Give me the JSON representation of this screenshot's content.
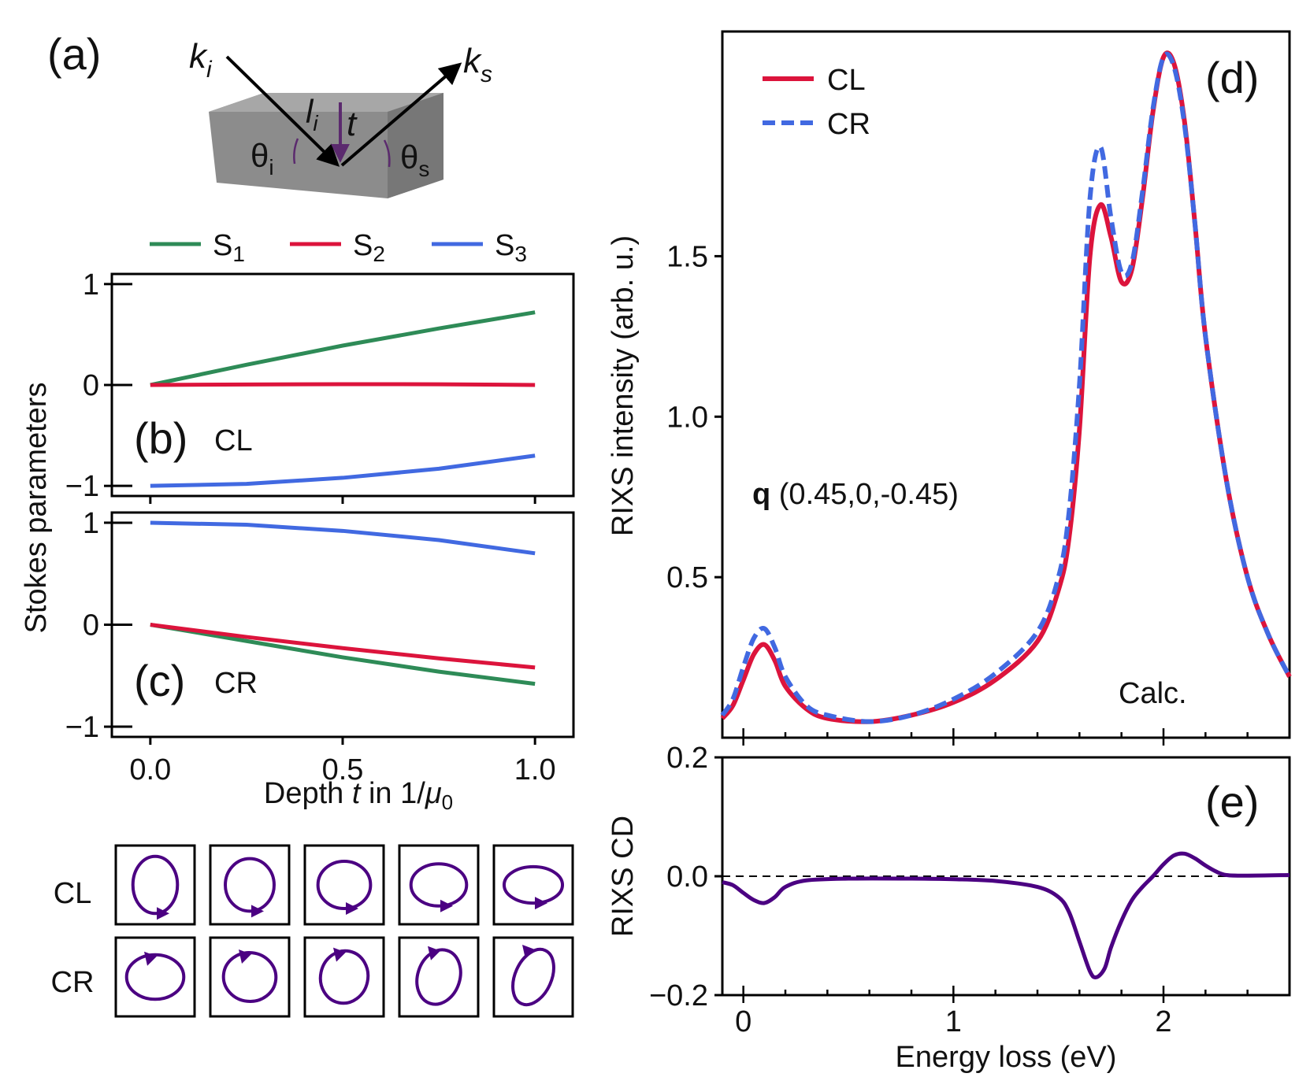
{
  "panel_labels": {
    "a": "(a)",
    "b": "(b)",
    "c": "(c)",
    "d": "(d)",
    "e": "(e)"
  },
  "schematic": {
    "k_in": "k",
    "k_in_sub": "i",
    "k_out": "k",
    "k_out_sub": "s",
    "theta_i": "θ",
    "theta_i_sub": "i",
    "theta_s": "θ",
    "theta_s_sub": "s",
    "path_len": "l",
    "path_len_sub": "i",
    "depth": "t"
  },
  "ellipses": {
    "row_labels": [
      "CL",
      "CR"
    ]
  },
  "colors": {
    "S1": "#2e8b57",
    "S2": "#dc143c",
    "S3": "#4169e1",
    "CL": "#dc143c",
    "CR": "#4169e1",
    "CD": "#4b0082"
  },
  "chart_data": [
    {
      "id": "b",
      "type": "line",
      "legend": [
        "S",
        "S",
        "S"
      ],
      "legend_subs": [
        "1",
        "2",
        "3"
      ],
      "label": "CL",
      "x": [
        0,
        0.25,
        0.5,
        0.75,
        1.0
      ],
      "series": [
        {
          "name": "S1",
          "values": [
            0,
            0.2,
            0.39,
            0.56,
            0.72
          ]
        },
        {
          "name": "S2",
          "values": [
            0,
            0.005,
            0.008,
            0.007,
            0
          ]
        },
        {
          "name": "S3",
          "values": [
            -1.0,
            -0.98,
            -0.92,
            -0.83,
            -0.7
          ]
        }
      ],
      "ylim": [
        -1.1,
        1.1
      ],
      "xlim": [
        -0.1,
        1.1
      ],
      "yticks": [
        -1,
        0,
        1
      ],
      "yticklabels": [
        "−1",
        "0",
        "1"
      ]
    },
    {
      "id": "c",
      "type": "line",
      "label": "CR",
      "x": [
        0,
        0.25,
        0.5,
        0.75,
        1.0
      ],
      "series": [
        {
          "name": "S1",
          "values": [
            0,
            -0.16,
            -0.32,
            -0.46,
            -0.58
          ]
        },
        {
          "name": "S2",
          "values": [
            0,
            -0.12,
            -0.23,
            -0.33,
            -0.42
          ]
        },
        {
          "name": "S3",
          "values": [
            1.0,
            0.98,
            0.92,
            0.83,
            0.7
          ]
        }
      ],
      "ylim": [
        -1.1,
        1.1
      ],
      "xlim": [
        -0.1,
        1.1
      ],
      "yticks": [
        -1,
        0,
        1
      ],
      "yticklabels": [
        "−1",
        "0",
        "1"
      ],
      "xticks": [
        0,
        0.5,
        1.0
      ],
      "xticklabels": [
        "0.0",
        "0.5",
        "1.0"
      ],
      "xlabel": "Depth ",
      "xlabel_var": "t",
      "xlabel_mid": " in 1/",
      "xlabel_mu": "μ",
      "xlabel_sub": "0",
      "ylabel": "Stokes parameters"
    },
    {
      "id": "d",
      "type": "line",
      "legend": [
        "CL",
        "CR"
      ],
      "annotation_bold": "q",
      "annotation": " (0.45,0,-0.45)",
      "calc_label": "Calc.",
      "ylabel": "RIXS intensity (arb. u.)",
      "xlim": [
        -0.1,
        2.6
      ],
      "ylim": [
        0,
        2.2
      ],
      "yticks": [
        0.5,
        1.0,
        1.5
      ],
      "yticklabels": [
        "0.5",
        "1.0",
        "1.5"
      ],
      "series": [
        {
          "name": "CL",
          "x": [
            -0.1,
            -0.05,
            0,
            0.05,
            0.1,
            0.15,
            0.2,
            0.3,
            0.4,
            0.6,
            0.8,
            1.0,
            1.2,
            1.4,
            1.5,
            1.55,
            1.6,
            1.65,
            1.7,
            1.75,
            1.8,
            1.85,
            1.9,
            1.95,
            2.0,
            2.05,
            2.1,
            2.15,
            2.2,
            2.3,
            2.4,
            2.5,
            2.6
          ],
          "y": [
            0.06,
            0.1,
            0.18,
            0.26,
            0.29,
            0.24,
            0.16,
            0.09,
            0.06,
            0.05,
            0.07,
            0.11,
            0.18,
            0.3,
            0.46,
            0.62,
            0.96,
            1.5,
            1.66,
            1.56,
            1.42,
            1.46,
            1.68,
            1.95,
            2.12,
            2.1,
            1.92,
            1.6,
            1.25,
            0.8,
            0.5,
            0.32,
            0.19
          ]
        },
        {
          "name": "CR",
          "x": [
            -0.1,
            -0.05,
            0,
            0.05,
            0.1,
            0.15,
            0.2,
            0.3,
            0.4,
            0.6,
            0.8,
            1.0,
            1.2,
            1.4,
            1.5,
            1.55,
            1.6,
            1.65,
            1.7,
            1.75,
            1.8,
            1.85,
            1.9,
            1.95,
            2.0,
            2.05,
            2.1,
            2.15,
            2.2,
            2.3,
            2.4,
            2.5,
            2.6
          ],
          "y": [
            0.07,
            0.12,
            0.22,
            0.31,
            0.34,
            0.28,
            0.19,
            0.1,
            0.07,
            0.05,
            0.07,
            0.12,
            0.2,
            0.33,
            0.5,
            0.7,
            1.1,
            1.68,
            1.84,
            1.62,
            1.45,
            1.48,
            1.7,
            1.96,
            2.12,
            2.09,
            1.91,
            1.6,
            1.25,
            0.8,
            0.5,
            0.32,
            0.19
          ]
        }
      ]
    },
    {
      "id": "e",
      "type": "line",
      "xlabel": "Energy loss (eV)",
      "ylabel": "RIXS CD",
      "xlim": [
        -0.1,
        2.6
      ],
      "ylim": [
        -0.2,
        0.2
      ],
      "yticks": [
        -0.2,
        0.0,
        0.2
      ],
      "yticklabels": [
        "−0.2",
        "0.0",
        "0.2"
      ],
      "xticks": [
        0,
        1,
        2
      ],
      "xticklabels": [
        "0",
        "1",
        "2"
      ],
      "series": [
        {
          "name": "CD",
          "x": [
            -0.1,
            -0.05,
            0,
            0.05,
            0.1,
            0.15,
            0.2,
            0.3,
            0.5,
            0.8,
            1.0,
            1.2,
            1.4,
            1.5,
            1.55,
            1.6,
            1.65,
            1.68,
            1.72,
            1.75,
            1.8,
            1.85,
            1.9,
            1.95,
            2.0,
            2.05,
            2.1,
            2.15,
            2.2,
            2.25,
            2.3,
            2.4,
            2.6
          ],
          "y": [
            -0.01,
            -0.015,
            -0.028,
            -0.04,
            -0.045,
            -0.035,
            -0.018,
            -0.007,
            -0.004,
            -0.004,
            -0.005,
            -0.008,
            -0.018,
            -0.035,
            -0.06,
            -0.11,
            -0.16,
            -0.17,
            -0.155,
            -0.12,
            -0.075,
            -0.04,
            -0.018,
            0.0,
            0.02,
            0.035,
            0.038,
            0.03,
            0.018,
            0.008,
            0.002,
            0.001,
            0.002
          ]
        }
      ]
    }
  ]
}
